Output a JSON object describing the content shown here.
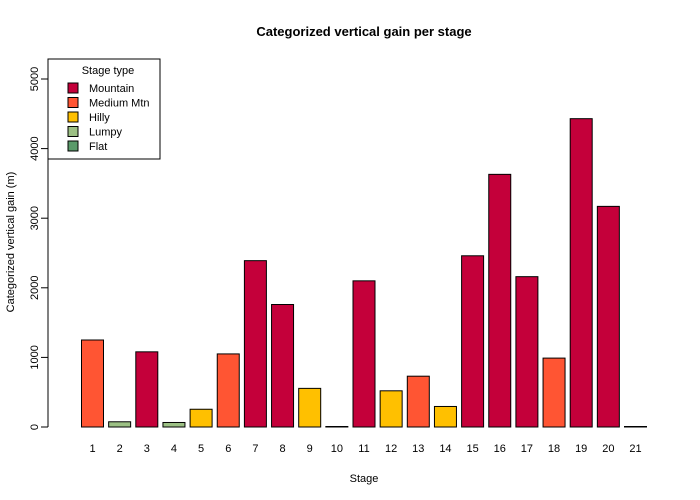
{
  "chart_data": {
    "type": "bar",
    "title": "Categorized vertical gain per stage",
    "xlabel": "Stage",
    "ylabel": "Categorized vertical gain (m)",
    "ylim": [
      0,
      5000
    ],
    "y_ticks": [
      "0",
      "1000",
      "2000",
      "3000",
      "4000",
      "5000"
    ],
    "categories": [
      "1",
      "2",
      "3",
      "4",
      "5",
      "6",
      "7",
      "8",
      "9",
      "10",
      "11",
      "12",
      "13",
      "14",
      "15",
      "16",
      "17",
      "18",
      "19",
      "20",
      "21"
    ],
    "values": [
      1250,
      75,
      1080,
      65,
      255,
      1050,
      2390,
      1760,
      555,
      0,
      2100,
      520,
      730,
      295,
      2460,
      3630,
      2160,
      990,
      4430,
      3170,
      0
    ],
    "stage_types": [
      "Medium Mtn",
      "Lumpy",
      "Mountain",
      "Lumpy",
      "Hilly",
      "Medium Mtn",
      "Mountain",
      "Mountain",
      "Hilly",
      "Flat",
      "Mountain",
      "Hilly",
      "Medium Mtn",
      "Hilly",
      "Mountain",
      "Mountain",
      "Mountain",
      "Medium Mtn",
      "Mountain",
      "Mountain",
      "Flat"
    ],
    "grid": false,
    "legend": {
      "title": "Stage type",
      "placement": "top-left",
      "entries": [
        {
          "name": "Mountain",
          "color": "#c4003a"
        },
        {
          "name": "Medium Mtn",
          "color": "#ff5533"
        },
        {
          "name": "Hilly",
          "color": "#ffc000"
        },
        {
          "name": "Lumpy",
          "color": "#9cc084"
        },
        {
          "name": "Flat",
          "color": "#5a9a6a"
        }
      ]
    }
  }
}
